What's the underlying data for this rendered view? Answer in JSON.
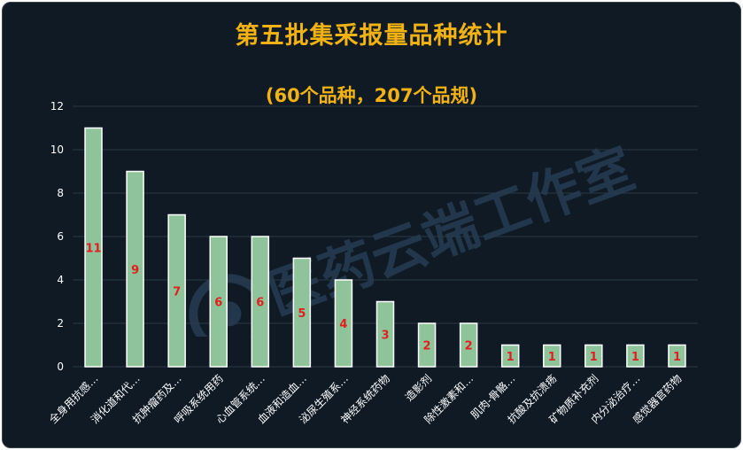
{
  "title": "第五批集采报量品种统计",
  "subtitle": "(60个品种，207个品规)",
  "watermark_text": "医药云端工作室",
  "colors": {
    "background": "#0f1a25",
    "title": "#f2b312",
    "bar_fill": "#8fc39a",
    "bar_stroke": "#ffffff",
    "data_label": "#e02020",
    "grid": "#2a3a48",
    "axis_text": "#ffffff"
  },
  "chart_data": {
    "type": "bar",
    "title": "第五批集采报量品种统计",
    "subtitle": "(60个品种，207个品规)",
    "categories": [
      "全身用抗感…",
      "消化道和代…",
      "抗肿瘤药及…",
      "呼吸系统用药",
      "心血管系统…",
      "血液和造血…",
      "泌尿生殖系…",
      "神经系统药物",
      "造影剂",
      "除性激素和…",
      "肌肉-骨骼…",
      "抗酸及抗溃疡",
      "矿物质补充剂",
      "内分泌治疗…",
      "感觉器官药物"
    ],
    "values": [
      11,
      9,
      7,
      6,
      6,
      5,
      4,
      3,
      2,
      2,
      1,
      1,
      1,
      1,
      1
    ],
    "ylim": [
      0,
      12
    ],
    "yticks": [
      0,
      2,
      4,
      6,
      8,
      10,
      12
    ],
    "grid": true,
    "data_labels": true,
    "xlabel": "",
    "ylabel": ""
  }
}
